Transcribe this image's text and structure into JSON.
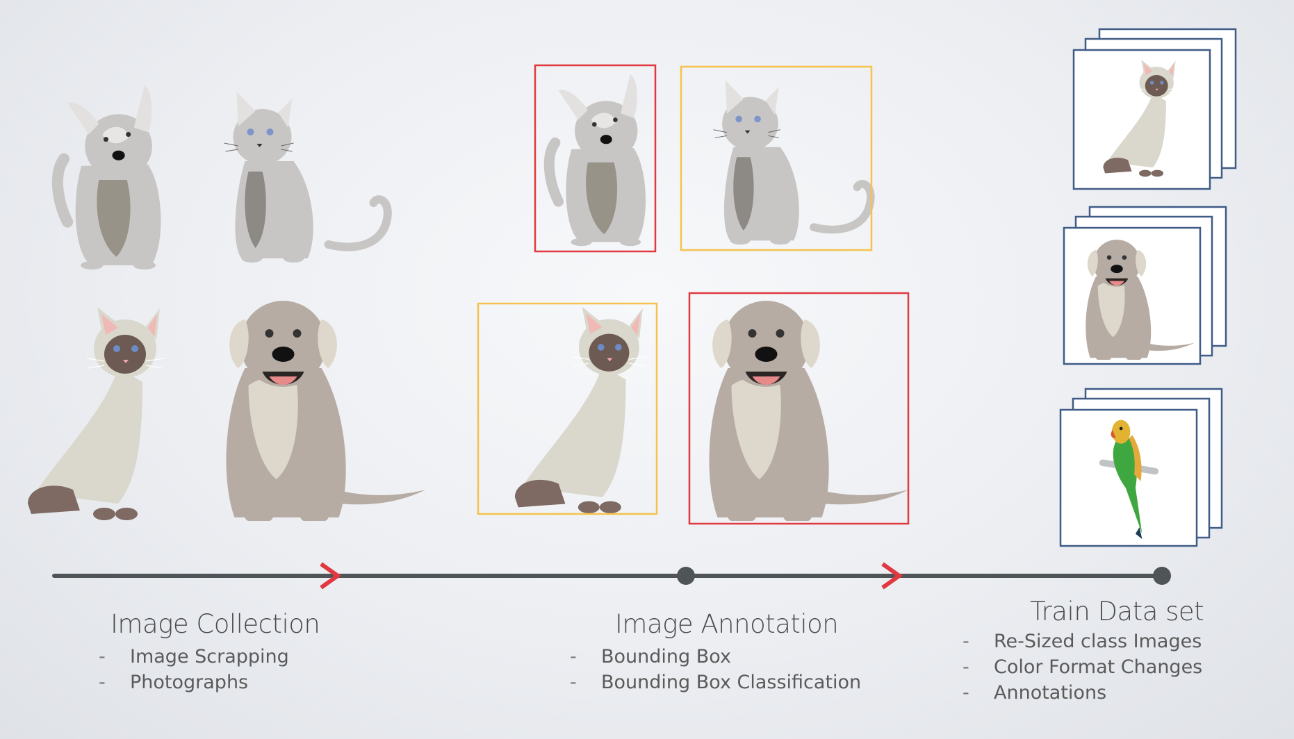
{
  "sections": {
    "collection": {
      "title": "Image Collection",
      "items": [
        "Image Scrapping",
        "Photographs"
      ]
    },
    "annotation": {
      "title": "Image Annotation",
      "items": [
        "Bounding Box",
        "Bounding Box Classification"
      ]
    },
    "train": {
      "title": "Train Data set",
      "items": [
        "Re-Sized class Images",
        "Color Format Changes",
        "Annotations"
      ]
    }
  },
  "bullet_marker": "-",
  "colors": {
    "timeline": "#4f5457",
    "arrow": "#e0393f",
    "box_red": "#e0393f",
    "box_yellow": "#f5c24c",
    "card_border": "#3f5b86"
  },
  "icons": [
    "cat-icon",
    "dog-icon",
    "siamese-cat-icon",
    "parrot-icon"
  ]
}
